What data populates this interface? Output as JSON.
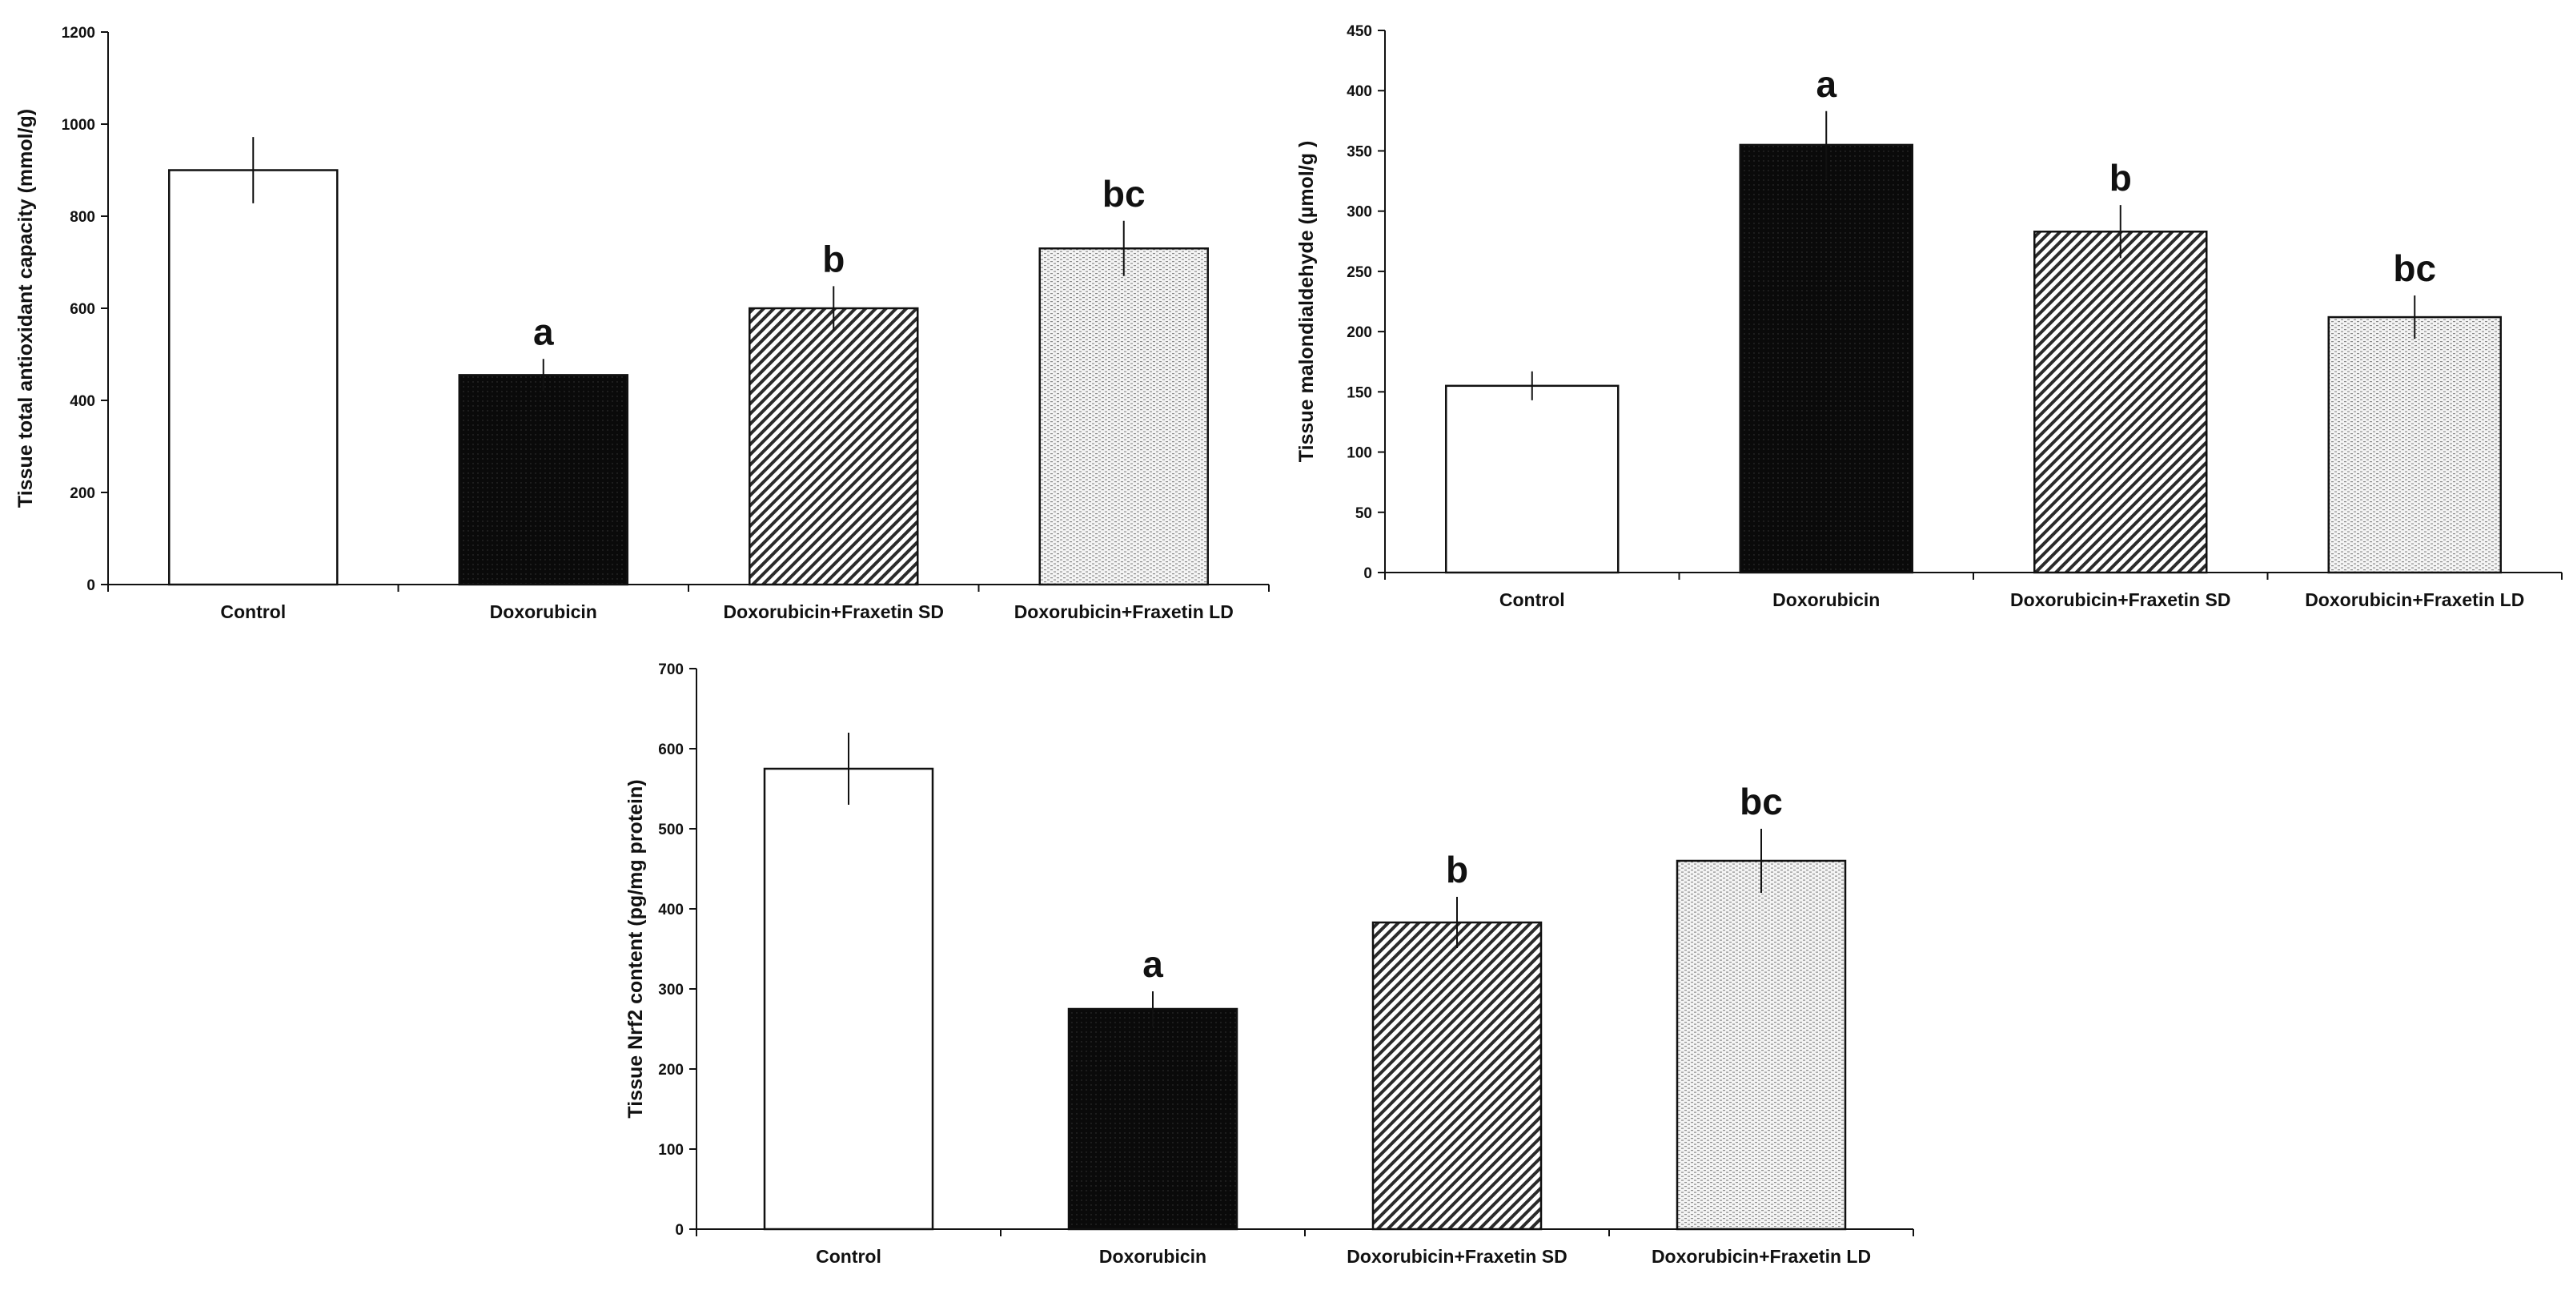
{
  "chart_data": [
    {
      "type": "bar",
      "title": "",
      "xlabel": "",
      "ylabel": "Tissue total antioxidant capacity (mmol/g)",
      "ylim": [
        0,
        1200
      ],
      "yticks": [
        0,
        200,
        400,
        600,
        800,
        1000,
        1200
      ],
      "categories": [
        "Control",
        "Doxorubicin",
        "Doxorubicin+Fraxetin SD",
        "Doxorubicin+Fraxetin LD"
      ],
      "values": [
        900,
        455,
        600,
        730
      ],
      "errors": [
        72,
        35,
        48,
        60
      ],
      "annotations": [
        "",
        "a",
        "b",
        "bc"
      ],
      "patterns": [
        "white",
        "black",
        "diagonal",
        "dotted"
      ],
      "grid": false
    },
    {
      "type": "bar",
      "title": "",
      "xlabel": "",
      "ylabel": "Tissue malondialdehyde (µmol/g )",
      "ylim": [
        0,
        450
      ],
      "yticks": [
        0,
        50,
        100,
        150,
        200,
        250,
        300,
        350,
        400,
        450
      ],
      "categories": [
        "Control",
        "Doxorubicin",
        "Doxorubicin+Fraxetin SD",
        "Doxorubicin+Fraxetin LD"
      ],
      "values": [
        155,
        355,
        283,
        212
      ],
      "errors": [
        12,
        28,
        22,
        18
      ],
      "annotations": [
        "",
        "a",
        "b",
        "bc"
      ],
      "patterns": [
        "white",
        "black",
        "diagonal",
        "dotted"
      ],
      "grid": false
    },
    {
      "type": "bar",
      "title": "",
      "xlabel": "",
      "ylabel": "Tissue Nrf2 content (pg/mg protein)",
      "ylim": [
        0,
        700
      ],
      "yticks": [
        0,
        100,
        200,
        300,
        400,
        500,
        600,
        700
      ],
      "categories": [
        "Control",
        "Doxorubicin",
        "Doxorubicin+Fraxetin SD",
        "Doxorubicin+Fraxetin LD"
      ],
      "values": [
        575,
        275,
        383,
        460
      ],
      "errors": [
        45,
        22,
        32,
        40
      ],
      "annotations": [
        "",
        "a",
        "b",
        "bc"
      ],
      "patterns": [
        "white",
        "black",
        "diagonal",
        "dotted"
      ],
      "grid": false
    }
  ]
}
